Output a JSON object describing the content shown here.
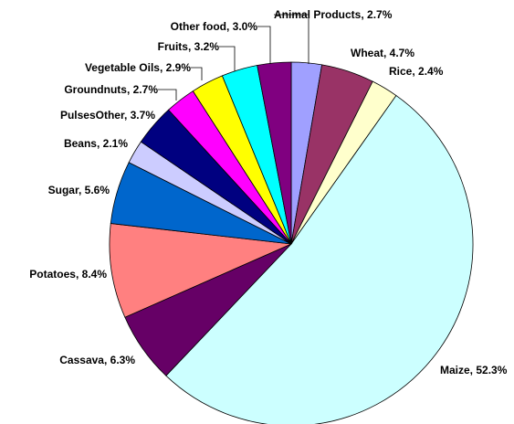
{
  "chart_data": {
    "type": "pie",
    "title": "",
    "legend": "none",
    "start_angle_deg": 90,
    "direction": "clockwise",
    "slices": [
      {
        "name": "Animal Products",
        "value": 2.7,
        "label": "Animal Products, 2.7%",
        "color": "#a0a0ff"
      },
      {
        "name": "Wheat",
        "value": 4.7,
        "label": "Wheat, 4.7%",
        "color": "#993366"
      },
      {
        "name": "Rice",
        "value": 2.4,
        "label": "Rice, 2.4%",
        "color": "#ffffcc"
      },
      {
        "name": "Maize",
        "value": 52.3,
        "label": "Maize, 52.3%",
        "color": "#ccffff"
      },
      {
        "name": "Cassava",
        "value": 6.3,
        "label": "Cassava, 6.3%",
        "color": "#660066"
      },
      {
        "name": "Potatoes",
        "value": 8.4,
        "label": "Potatoes, 8.4%",
        "color": "#ff8080"
      },
      {
        "name": "Sugar",
        "value": 5.6,
        "label": "Sugar, 5.6%",
        "color": "#0066cc"
      },
      {
        "name": "Beans",
        "value": 2.1,
        "label": "Beans, 2.1%",
        "color": "#ccccff"
      },
      {
        "name": "PulsesOther",
        "value": 3.7,
        "label": "PulsesOther, 3.7%",
        "color": "#000080"
      },
      {
        "name": "Groundnuts",
        "value": 2.7,
        "label": "Groundnuts, 2.7%",
        "color": "#ff00ff"
      },
      {
        "name": "Vegetable Oils",
        "value": 2.9,
        "label": "Vegetable Oils, 2.9%",
        "color": "#ffff00"
      },
      {
        "name": "Fruits",
        "value": 3.2,
        "label": "Fruits, 3.2%",
        "color": "#00ffff"
      },
      {
        "name": "Other food",
        "value": 3.0,
        "label": "Other food, 3.0%",
        "color": "#800080"
      }
    ]
  }
}
